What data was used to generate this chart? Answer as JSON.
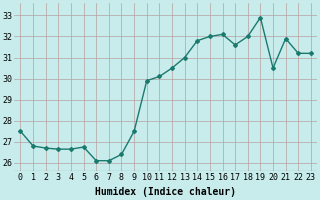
{
  "x": [
    0,
    1,
    2,
    3,
    4,
    5,
    6,
    7,
    8,
    9,
    10,
    11,
    12,
    13,
    14,
    15,
    16,
    17,
    18,
    19,
    20,
    21,
    22,
    23
  ],
  "y": [
    27.5,
    26.8,
    26.7,
    26.65,
    26.65,
    26.75,
    26.1,
    26.1,
    26.4,
    27.5,
    29.9,
    30.1,
    30.5,
    31.0,
    31.8,
    32.0,
    32.1,
    31.6,
    32.0,
    32.9,
    30.5,
    31.9,
    31.2,
    31.2
  ],
  "line_color": "#1a7a6e",
  "marker": "D",
  "marker_size": 2.0,
  "line_width": 1.0,
  "bg_color": "#c8ecec",
  "grid_color": "#b8a0a0",
  "xlabel": "Humidex (Indice chaleur)",
  "xlabel_fontsize": 7,
  "xlabel_weight": "bold",
  "ylabel_ticks": [
    26,
    27,
    28,
    29,
    30,
    31,
    32,
    33
  ],
  "xlim": [
    -0.5,
    23.5
  ],
  "ylim": [
    25.6,
    33.6
  ],
  "tick_fontsize": 6.0,
  "ytick_fontsize": 6.0
}
